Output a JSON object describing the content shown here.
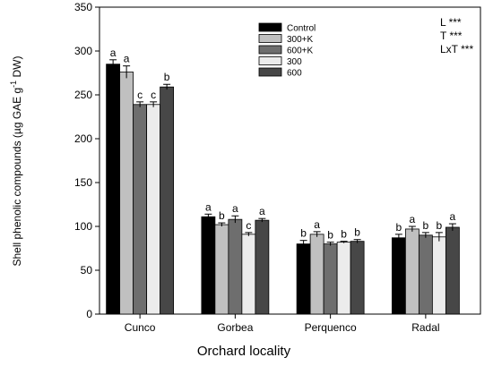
{
  "chart_data": {
    "type": "bar",
    "title": "",
    "xlabel": "Orchard locality",
    "ylabel": "Shell phenolic compounds (µg GAE g",
    "ylabel_sup": "-1",
    "ylabel_tail": " DW)",
    "ylim": [
      0,
      350
    ],
    "yticks": [
      "0",
      "50",
      "100",
      "150",
      "200",
      "250",
      "300",
      "350"
    ],
    "categories": [
      "Cunco",
      "Gorbea",
      "Perquenco",
      "Radal"
    ],
    "legend_position": "top-center",
    "grid": false,
    "series": [
      {
        "name": "Control",
        "color": "#000000",
        "values": [
          285,
          111,
          80,
          87
        ],
        "errors": [
          5,
          3,
          4,
          4
        ],
        "letters": [
          "a",
          "a",
          "b",
          "b"
        ]
      },
      {
        "name": "300+K",
        "color": "#c0c0c0",
        "values": [
          276,
          102,
          91,
          97
        ],
        "errors": [
          7,
          2,
          3,
          3
        ],
        "letters": [
          "a",
          "b",
          "a",
          "a"
        ]
      },
      {
        "name": "600+K",
        "color": "#6e6e6e",
        "values": [
          239,
          108,
          80,
          90
        ],
        "errors": [
          3,
          4,
          2,
          3
        ],
        "letters": [
          "c",
          "a",
          "b",
          "b"
        ]
      },
      {
        "name": "300",
        "color": "#ececec",
        "values": [
          239,
          91,
          82,
          88
        ],
        "errors": [
          3,
          2,
          1,
          5
        ],
        "letters": [
          "c",
          "c",
          "b",
          "b"
        ]
      },
      {
        "name": "600",
        "color": "#474747",
        "values": [
          259,
          107,
          83,
          99
        ],
        "errors": [
          3,
          2,
          2,
          4
        ],
        "letters": [
          "b",
          "a",
          "b",
          "a"
        ]
      }
    ],
    "annotations": [
      "L ***",
      "T ***",
      "LxT ***"
    ]
  }
}
